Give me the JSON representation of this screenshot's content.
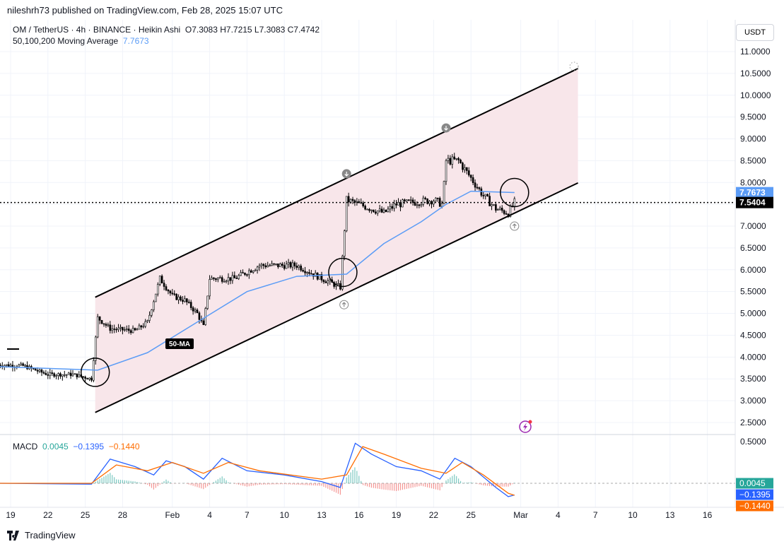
{
  "publisher": "nileshrh73 published on TradingView.com, Feb 28, 2025 15:07 UTC",
  "legend": {
    "symbol": "OM / TetherUS · 4h · BINANCE · Heikin Ashi",
    "ohlc": "O7.3083  H7.7215  L7.3083  C7.4742",
    "ma_label": "50,100,200 Moving Average",
    "ma_value": "7.7673",
    "macd_label": "MACD",
    "macd_values": [
      "0.0045",
      "−0.1395",
      "−0.1440"
    ]
  },
  "currency_button": "USDT",
  "footer": "TradingView",
  "annotation": "50-MA",
  "colors": {
    "ma": "#5b9cf6",
    "macd": "#2962ff",
    "signal": "#ff6d00",
    "hist_pos": "#26a69a",
    "hist_neg": "#ef5350",
    "channel_fill": "#f8e6ea",
    "price_label": "#000000",
    "ma_label": "#5b9cf6"
  },
  "chart_data": {
    "type": "candlestick",
    "price_axis": {
      "ticks": [
        "2.5000",
        "3.0000",
        "3.5000",
        "4.0000",
        "4.5000",
        "5.0000",
        "5.5000",
        "6.0000",
        "6.5000",
        "7.0000",
        "7.5000",
        "8.0000",
        "8.5000",
        "9.0000",
        "9.5000",
        "10.0000",
        "10.5000",
        "11.0000"
      ],
      "range": [
        2.3,
        11.5
      ]
    },
    "date_axis": [
      {
        "label": "19",
        "date": "2025-01-19"
      },
      {
        "label": "22",
        "date": "2025-01-22"
      },
      {
        "label": "25",
        "date": "2025-01-25"
      },
      {
        "label": "28",
        "date": "2025-01-28"
      },
      {
        "label": "Feb",
        "date": "2025-02-01"
      },
      {
        "label": "4",
        "date": "2025-02-04"
      },
      {
        "label": "7",
        "date": "2025-02-07"
      },
      {
        "label": "10",
        "date": "2025-02-10"
      },
      {
        "label": "13",
        "date": "2025-02-13"
      },
      {
        "label": "16",
        "date": "2025-02-16"
      },
      {
        "label": "19",
        "date": "2025-02-19"
      },
      {
        "label": "22",
        "date": "2025-02-22"
      },
      {
        "label": "25",
        "date": "2025-02-25"
      },
      {
        "label": "Mar",
        "date": "2025-03-01"
      },
      {
        "label": "4",
        "date": "2025-03-04"
      },
      {
        "label": "7",
        "date": "2025-03-07"
      },
      {
        "label": "10",
        "date": "2025-03-10"
      },
      {
        "label": "13",
        "date": "2025-03-13"
      },
      {
        "label": "16",
        "date": "2025-03-16"
      }
    ],
    "price_path": [
      [
        "2025-01-18",
        3.82
      ],
      [
        "2025-01-20",
        3.8
      ],
      [
        "2025-01-21",
        3.7
      ],
      [
        "2025-01-22",
        3.6
      ],
      [
        "2025-01-24",
        3.6
      ],
      [
        "2025-01-25.5",
        3.5
      ],
      [
        "2025-01-26",
        4.9
      ],
      [
        "2025-01-27",
        4.65
      ],
      [
        "2025-01-29",
        4.6
      ],
      [
        "2025-01-30",
        4.8
      ],
      [
        "2025-01-31",
        5.8
      ],
      [
        "2025-02-01",
        5.4
      ],
      [
        "2025-02-02",
        5.3
      ],
      [
        "2025-02-03",
        5.0
      ],
      [
        "2025-02-03.5",
        4.7
      ],
      [
        "2025-02-04",
        5.8
      ],
      [
        "2025-02-06",
        5.8
      ],
      [
        "2025-02-08",
        6.1
      ],
      [
        "2025-02-11",
        6.1
      ],
      [
        "2025-02-13",
        5.8
      ],
      [
        "2025-02-14.5",
        5.6
      ],
      [
        "2025-02-15",
        7.6
      ],
      [
        "2025-02-17",
        7.4
      ],
      [
        "2025-02-18",
        7.3
      ],
      [
        "2025-02-19",
        7.5
      ],
      [
        "2025-02-22",
        7.6
      ],
      [
        "2025-02-22.7",
        7.5
      ],
      [
        "2025-02-23",
        8.5
      ],
      [
        "2025-02-24",
        8.5
      ],
      [
        "2025-02-25",
        8.1
      ],
      [
        "2025-02-26",
        7.7
      ],
      [
        "2025-02-27",
        7.4
      ],
      [
        "2025-02-28",
        7.3
      ],
      [
        "2025-02-28.5",
        7.54
      ]
    ],
    "moving_average_50": [
      [
        "2025-01-18",
        3.78
      ],
      [
        "2025-01-26",
        3.7
      ],
      [
        "2025-01-30",
        4.1
      ],
      [
        "2025-02-03",
        4.8
      ],
      [
        "2025-02-07",
        5.5
      ],
      [
        "2025-02-11",
        5.85
      ],
      [
        "2025-02-15",
        5.9
      ],
      [
        "2025-02-18",
        6.6
      ],
      [
        "2025-02-21",
        7.1
      ],
      [
        "2025-02-23",
        7.5
      ],
      [
        "2025-02-25",
        7.8
      ],
      [
        "2025-02-28.5",
        7.77
      ]
    ],
    "channel": {
      "upper": [
        [
          "2025-01-25.8",
          5.37
        ],
        [
          "2025-03-05.6",
          10.61
        ]
      ],
      "lower": [
        [
          "2025-01-25.8",
          2.73
        ],
        [
          "2025-03-05.6",
          7.99
        ]
      ]
    },
    "last_price": "7.5404",
    "ma_last": "7.7673",
    "macd": {
      "axis_ticks": [
        "0.5000"
      ],
      "macd_line": [
        [
          "2025-01-18",
          0.0
        ],
        [
          "2025-01-25.5",
          -0.01
        ],
        [
          "2025-01-27",
          0.29
        ],
        [
          "2025-01-29",
          0.2
        ],
        [
          "2025-01-30.5",
          0.1
        ],
        [
          "2025-01-31.5",
          0.27
        ],
        [
          "2025-02-02",
          0.2
        ],
        [
          "2025-02-03.5",
          0.05
        ],
        [
          "2025-02-05",
          0.3
        ],
        [
          "2025-02-07",
          0.15
        ],
        [
          "2025-02-10",
          0.1
        ],
        [
          "2025-02-13",
          0.02
        ],
        [
          "2025-02-14.5",
          -0.05
        ],
        [
          "2025-02-15.7",
          0.48
        ],
        [
          "2025-02-17",
          0.35
        ],
        [
          "2025-02-19",
          0.2
        ],
        [
          "2025-02-21",
          0.15
        ],
        [
          "2025-02-22.5",
          0.05
        ],
        [
          "2025-02-23.7",
          0.3
        ],
        [
          "2025-02-25",
          0.2
        ],
        [
          "2025-02-27",
          -0.05
        ],
        [
          "2025-02-28",
          -0.16
        ],
        [
          "2025-02-28.5",
          -0.1395
        ]
      ],
      "signal_line": [
        [
          "2025-01-18",
          0.0
        ],
        [
          "2025-01-25.5",
          0.0
        ],
        [
          "2025-01-27.5",
          0.22
        ],
        [
          "2025-01-30",
          0.15
        ],
        [
          "2025-02-01",
          0.25
        ],
        [
          "2025-02-03.5",
          0.12
        ],
        [
          "2025-02-05.5",
          0.25
        ],
        [
          "2025-02-08",
          0.15
        ],
        [
          "2025-02-13",
          0.05
        ],
        [
          "2025-02-15",
          0.1
        ],
        [
          "2025-02-16.3",
          0.44
        ],
        [
          "2025-02-18",
          0.35
        ],
        [
          "2025-02-21",
          0.18
        ],
        [
          "2025-02-23",
          0.12
        ],
        [
          "2025-02-24.3",
          0.25
        ],
        [
          "2025-02-26",
          0.1
        ],
        [
          "2025-02-28",
          -0.12
        ],
        [
          "2025-02-28.5",
          -0.144
        ]
      ],
      "last": {
        "histogram": "0.0045",
        "macd": "−0.1395",
        "signal": "−0.1440"
      }
    },
    "markers": [
      {
        "type": "circle",
        "date": "2025-01-25.8",
        "price": 3.65
      },
      {
        "type": "circle",
        "date": "2025-02-14.7",
        "price": 5.94
      },
      {
        "type": "circle",
        "date": "2025-02-28.5",
        "price": 7.77
      },
      {
        "type": "arrow-down",
        "date": "2025-02-15",
        "price": 8.2
      },
      {
        "type": "arrow-down",
        "date": "2025-02-23",
        "price": 9.25
      },
      {
        "type": "arrow-up",
        "date": "2025-02-14.8",
        "price": 5.2
      },
      {
        "type": "arrow-up",
        "date": "2025-02-28.5",
        "price": 7.0
      }
    ]
  }
}
